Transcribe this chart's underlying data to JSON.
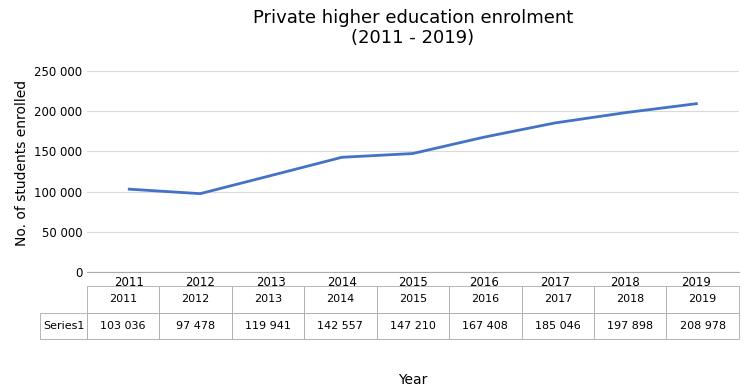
{
  "title": "Private higher education enrolment\n(2011 - 2019)",
  "xlabel": "Year",
  "ylabel": "No. of students enrolled",
  "years": [
    2011,
    2012,
    2013,
    2014,
    2015,
    2016,
    2017,
    2018,
    2019
  ],
  "values": [
    103036,
    97478,
    119941,
    142557,
    147210,
    167408,
    185046,
    197898,
    208978
  ],
  "series_label": "Series1",
  "table_values": [
    "103 036",
    "97 478",
    "119 941",
    "142 557",
    "147 210",
    "167 408",
    "185 046",
    "197 898",
    "208 978"
  ],
  "line_color": "#4472C4",
  "line_width": 2.0,
  "ylim": [
    0,
    270000
  ],
  "yticks": [
    0,
    50000,
    100000,
    150000,
    200000,
    250000
  ],
  "ytick_labels": [
    "0",
    "50 000",
    "100 000",
    "150 000",
    "200 000",
    "250 000"
  ],
  "background_color": "#ffffff",
  "grid_color": "#d9d9d9",
  "title_fontsize": 13,
  "axis_label_fontsize": 10,
  "tick_fontsize": 8.5,
  "table_fontsize": 8
}
